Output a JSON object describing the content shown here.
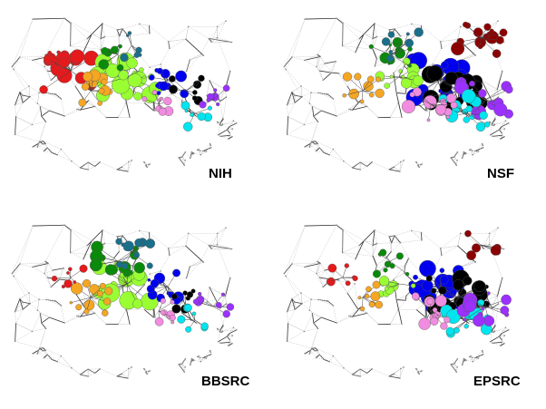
{
  "panels": [
    {
      "label": "NIH",
      "clusters": [
        {
          "cluster": "red",
          "color": "#e41a1c",
          "weight": 1.0
        },
        {
          "cluster": "lime",
          "color": "#99ff33",
          "weight": 1.2
        },
        {
          "cluster": "blue",
          "color": "#0000ee",
          "weight": 0.5
        },
        {
          "cluster": "orange",
          "color": "#f5a623",
          "weight": 0.6
        },
        {
          "cluster": "black",
          "color": "#000000",
          "weight": 0.3
        },
        {
          "cluster": "green",
          "color": "#0a8a0a",
          "weight": 0.3
        },
        {
          "cluster": "pink",
          "color": "#f28ce0",
          "weight": 0.3
        },
        {
          "cluster": "cyan",
          "color": "#00e5ee",
          "weight": 0.3
        },
        {
          "cluster": "purple",
          "color": "#9b30ff",
          "weight": 0.2
        },
        {
          "cluster": "teal",
          "color": "#1a6f8a",
          "weight": 0.2
        }
      ]
    },
    {
      "label": "NSF",
      "clusters": [
        {
          "cluster": "blue",
          "color": "#0000ee",
          "weight": 1.1
        },
        {
          "cluster": "black",
          "color": "#000000",
          "weight": 1.1
        },
        {
          "cluster": "purple",
          "color": "#9b30ff",
          "weight": 0.9
        },
        {
          "cluster": "cyan",
          "color": "#00e5ee",
          "weight": 0.8
        },
        {
          "cluster": "pink",
          "color": "#f28ce0",
          "weight": 0.7
        },
        {
          "cluster": "darkred",
          "color": "#8b0000",
          "weight": 0.7
        },
        {
          "cluster": "lime",
          "color": "#99ff33",
          "weight": 0.6
        },
        {
          "cluster": "green",
          "color": "#0a8a0a",
          "weight": 0.5
        },
        {
          "cluster": "orange",
          "color": "#f5a623",
          "weight": 0.4
        },
        {
          "cluster": "teal",
          "color": "#1a6f8a",
          "weight": 0.3
        }
      ]
    },
    {
      "label": "BBSRC",
      "clusters": [
        {
          "cluster": "lime",
          "color": "#99ff33",
          "weight": 1.3
        },
        {
          "cluster": "green",
          "color": "#0a8a0a",
          "weight": 0.7
        },
        {
          "cluster": "orange",
          "color": "#f5a623",
          "weight": 0.6
        },
        {
          "cluster": "blue",
          "color": "#0000ee",
          "weight": 0.5
        },
        {
          "cluster": "teal",
          "color": "#1a6f8a",
          "weight": 0.5
        },
        {
          "cluster": "black",
          "color": "#000000",
          "weight": 0.3
        },
        {
          "cluster": "pink",
          "color": "#f28ce0",
          "weight": 0.3
        },
        {
          "cluster": "purple",
          "color": "#9b30ff",
          "weight": 0.3
        },
        {
          "cluster": "cyan",
          "color": "#00e5ee",
          "weight": 0.2
        },
        {
          "cluster": "red",
          "color": "#e41a1c",
          "weight": 0.2
        }
      ]
    },
    {
      "label": "EPSRC",
      "clusters": [
        {
          "cluster": "blue",
          "color": "#0000ee",
          "weight": 1.2
        },
        {
          "cluster": "black",
          "color": "#000000",
          "weight": 1.2
        },
        {
          "cluster": "cyan",
          "color": "#00e5ee",
          "weight": 0.8
        },
        {
          "cluster": "purple",
          "color": "#9b30ff",
          "weight": 0.8
        },
        {
          "cluster": "pink",
          "color": "#f28ce0",
          "weight": 0.6
        },
        {
          "cluster": "lime",
          "color": "#99ff33",
          "weight": 0.4
        },
        {
          "cluster": "orange",
          "color": "#f5a623",
          "weight": 0.3
        },
        {
          "cluster": "green",
          "color": "#0a8a0a",
          "weight": 0.3
        },
        {
          "cluster": "darkred",
          "color": "#8b0000",
          "weight": 0.3
        },
        {
          "cluster": "red",
          "color": "#e41a1c",
          "weight": 0.2
        }
      ]
    }
  ]
}
